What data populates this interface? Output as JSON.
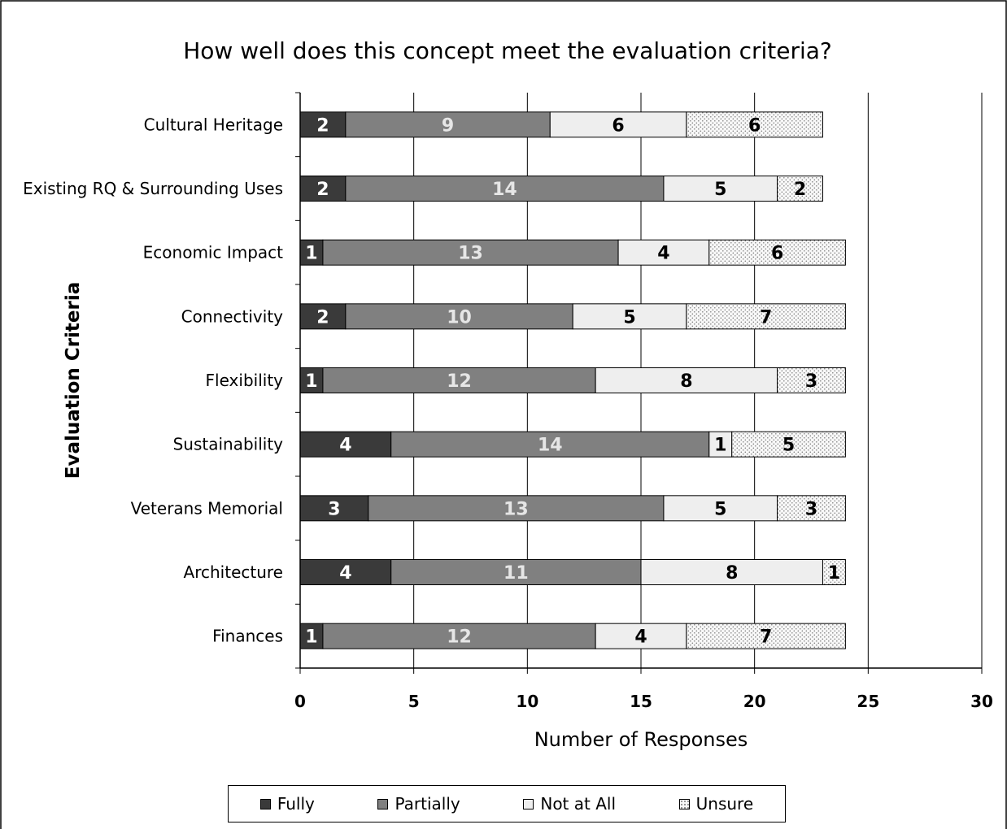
{
  "chart_data": {
    "type": "bar",
    "orientation": "horizontal",
    "stacked": true,
    "title": "How well does this concept meet the evaluation criteria?",
    "xlabel": "Number of Responses",
    "ylabel": "Evaluation Criteria",
    "xlim": [
      0,
      30
    ],
    "xticks": [
      0,
      5,
      10,
      15,
      20,
      25,
      30
    ],
    "grid": "vertical",
    "legend_position": "bottom",
    "categories": [
      "Cultural Heritage",
      "Existing RQ & Surrounding Uses",
      "Economic Impact",
      "Connectivity",
      "Flexibility",
      "Sustainability",
      "Veterans Memorial",
      "Architecture",
      "Finances"
    ],
    "series": [
      {
        "name": "Fully",
        "color": "#3a3a3a",
        "label_color": "#ffffff",
        "pattern": "solid",
        "values": [
          2,
          2,
          1,
          2,
          1,
          4,
          3,
          4,
          1
        ]
      },
      {
        "name": "Partially",
        "color": "#808080",
        "label_color": "#e6e6e6",
        "pattern": "solid",
        "values": [
          9,
          14,
          13,
          10,
          12,
          14,
          13,
          11,
          12
        ]
      },
      {
        "name": "Not at All",
        "color": "#eeeeee",
        "label_color": "#000000",
        "pattern": "solid",
        "values": [
          6,
          5,
          4,
          5,
          8,
          1,
          5,
          8,
          4
        ]
      },
      {
        "name": "Unsure",
        "color": "#f4f4f4",
        "label_color": "#000000",
        "pattern": "dots",
        "values": [
          6,
          2,
          6,
          7,
          3,
          5,
          3,
          1,
          7
        ]
      }
    ]
  }
}
